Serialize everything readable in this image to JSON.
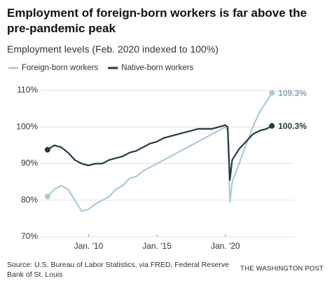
{
  "chart_data": {
    "type": "line",
    "title": "Employment of foreign-born workers is far above the pre-pandemic peak",
    "subtitle": "Employment levels (Feb. 2020 indexed to 100%)",
    "source": "Source: U.S. Bureau of Labor Statistics, via FRED, Federal Reserve Bank of St. Louis",
    "brand": "THE WASHINGTON POST",
    "x": [
      2007.0,
      2007.5,
      2008.0,
      2008.5,
      2009.0,
      2009.5,
      2010.0,
      2010.5,
      2011.0,
      2011.5,
      2012.0,
      2012.5,
      2013.0,
      2013.5,
      2014.0,
      2014.5,
      2015.0,
      2015.5,
      2016.0,
      2016.5,
      2017.0,
      2017.5,
      2018.0,
      2018.5,
      2019.0,
      2019.5,
      2020.0,
      2020.17,
      2020.33,
      2020.5,
      2021.0,
      2021.5,
      2022.0,
      2022.5,
      2023.0,
      2023.4
    ],
    "series": [
      {
        "name": "Foreign-born workers",
        "color": "#a7ccd7",
        "label": "109.3%",
        "values": [
          81,
          83,
          84,
          83,
          80,
          77,
          77.5,
          79,
          80,
          81,
          83,
          84,
          86,
          86.5,
          88,
          89,
          90,
          91,
          92,
          93,
          94,
          95,
          96,
          97,
          98,
          99,
          100,
          99,
          79.5,
          85,
          90,
          95,
          100,
          104,
          107,
          109.3
        ]
      },
      {
        "name": "Native-born workers",
        "color": "#1f3d42",
        "label": "100.3%",
        "values": [
          93.8,
          95,
          94.5,
          93,
          91,
          90,
          89.5,
          90,
          90,
          91,
          91.5,
          92,
          93,
          93.5,
          94.5,
          95.5,
          96,
          97,
          97.5,
          98,
          98.5,
          99,
          99.5,
          99.5,
          99.5,
          100,
          100.5,
          100,
          85.5,
          91,
          94,
          96,
          98,
          99,
          99.5,
          100.3
        ]
      }
    ],
    "xlim": [
      2006.6,
      2023.8
    ],
    "xticks": [
      {
        "value": 2010,
        "label": "Jan. '10"
      },
      {
        "value": 2015,
        "label": "Jan. '15"
      },
      {
        "value": 2020,
        "label": "Jan. '20"
      }
    ],
    "ylim": [
      70,
      110
    ],
    "yticks": [
      {
        "value": 70,
        "label": "70%"
      },
      {
        "value": 80,
        "label": "80%"
      },
      {
        "value": 90,
        "label": "90%"
      },
      {
        "value": 100,
        "label": "100%"
      },
      {
        "value": 110,
        "label": "110%"
      }
    ],
    "grid": true
  }
}
